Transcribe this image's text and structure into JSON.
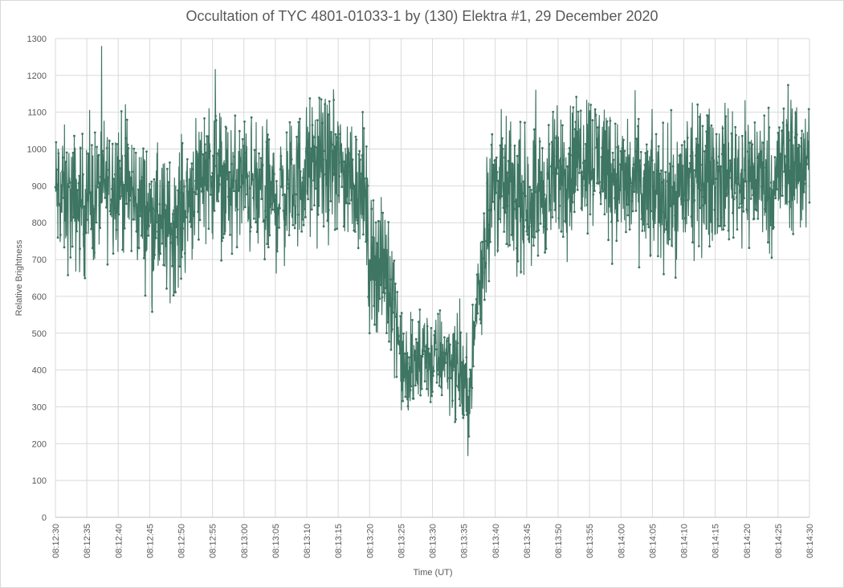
{
  "chart_data": {
    "type": "line",
    "title": "Occultation of TYC 4801-01033-1 by (130) Elektra #1, 29 December 2020",
    "xlabel": "Time (UT)",
    "ylabel": "Relative Brightness",
    "ylim": [
      0,
      1300
    ],
    "yticks": [
      0,
      100,
      200,
      300,
      400,
      500,
      600,
      700,
      800,
      900,
      1000,
      1100,
      1200,
      1300
    ],
    "xlim": [
      "08:12:30",
      "08:14:30"
    ],
    "xticks": [
      "08:12:30",
      "08:12:35",
      "08:12:40",
      "08:12:45",
      "08:12:50",
      "08:12:55",
      "08:13:00",
      "08:13:05",
      "08:13:10",
      "08:13:15",
      "08:13:20",
      "08:13:25",
      "08:13:30",
      "08:13:35",
      "08:13:40",
      "08:13:45",
      "08:13:50",
      "08:13:55",
      "08:14:00",
      "08:14:05",
      "08:14:10",
      "08:14:15",
      "08:14:20",
      "08:14:25",
      "08:14:30"
    ],
    "grid": true,
    "legend": "none",
    "series": [
      {
        "color": "#3e7563",
        "marker": "circle",
        "x": [
          "08:12:30",
          "08:12:32",
          "08:12:34",
          "08:12:36",
          "08:12:38",
          "08:12:40",
          "08:12:42",
          "08:12:44",
          "08:12:46",
          "08:12:48",
          "08:12:50",
          "08:12:52",
          "08:12:54",
          "08:12:56",
          "08:12:58",
          "08:13:00",
          "08:13:02",
          "08:13:04",
          "08:13:06",
          "08:13:08",
          "08:13:10",
          "08:13:12",
          "08:13:14",
          "08:13:16",
          "08:13:18",
          "08:13:19",
          "08:13:20",
          "08:13:21",
          "08:13:22",
          "08:13:23",
          "08:13:24",
          "08:13:25",
          "08:13:26",
          "08:13:27",
          "08:13:28",
          "08:13:29",
          "08:13:30",
          "08:13:31",
          "08:13:32",
          "08:13:33",
          "08:13:34",
          "08:13:35",
          "08:13:36",
          "08:13:37",
          "08:13:38",
          "08:13:39",
          "08:13:40",
          "08:13:42",
          "08:13:44",
          "08:13:46",
          "08:13:48",
          "08:13:50",
          "08:13:52",
          "08:13:54",
          "08:13:56",
          "08:13:58",
          "08:14:00",
          "08:14:02",
          "08:14:04",
          "08:14:06",
          "08:14:08",
          "08:14:10",
          "08:14:12",
          "08:14:14",
          "08:14:16",
          "08:14:18",
          "08:14:20",
          "08:14:22",
          "08:14:24",
          "08:14:26",
          "08:14:28",
          "08:14:30"
        ],
        "y": [
          880,
          860,
          850,
          870,
          900,
          920,
          880,
          840,
          810,
          780,
          830,
          900,
          960,
          920,
          900,
          910,
          880,
          860,
          870,
          900,
          940,
          960,
          950,
          940,
          910,
          900,
          700,
          700,
          670,
          650,
          600,
          420,
          380,
          400,
          430,
          450,
          420,
          430,
          450,
          420,
          400,
          360,
          330,
          580,
          700,
          850,
          900,
          880,
          860,
          870,
          890,
          930,
          950,
          990,
          980,
          960,
          900,
          910,
          870,
          880,
          860,
          900,
          910,
          930,
          930,
          940,
          920,
          930,
          900,
          960,
          960,
          950
        ]
      }
    ]
  }
}
